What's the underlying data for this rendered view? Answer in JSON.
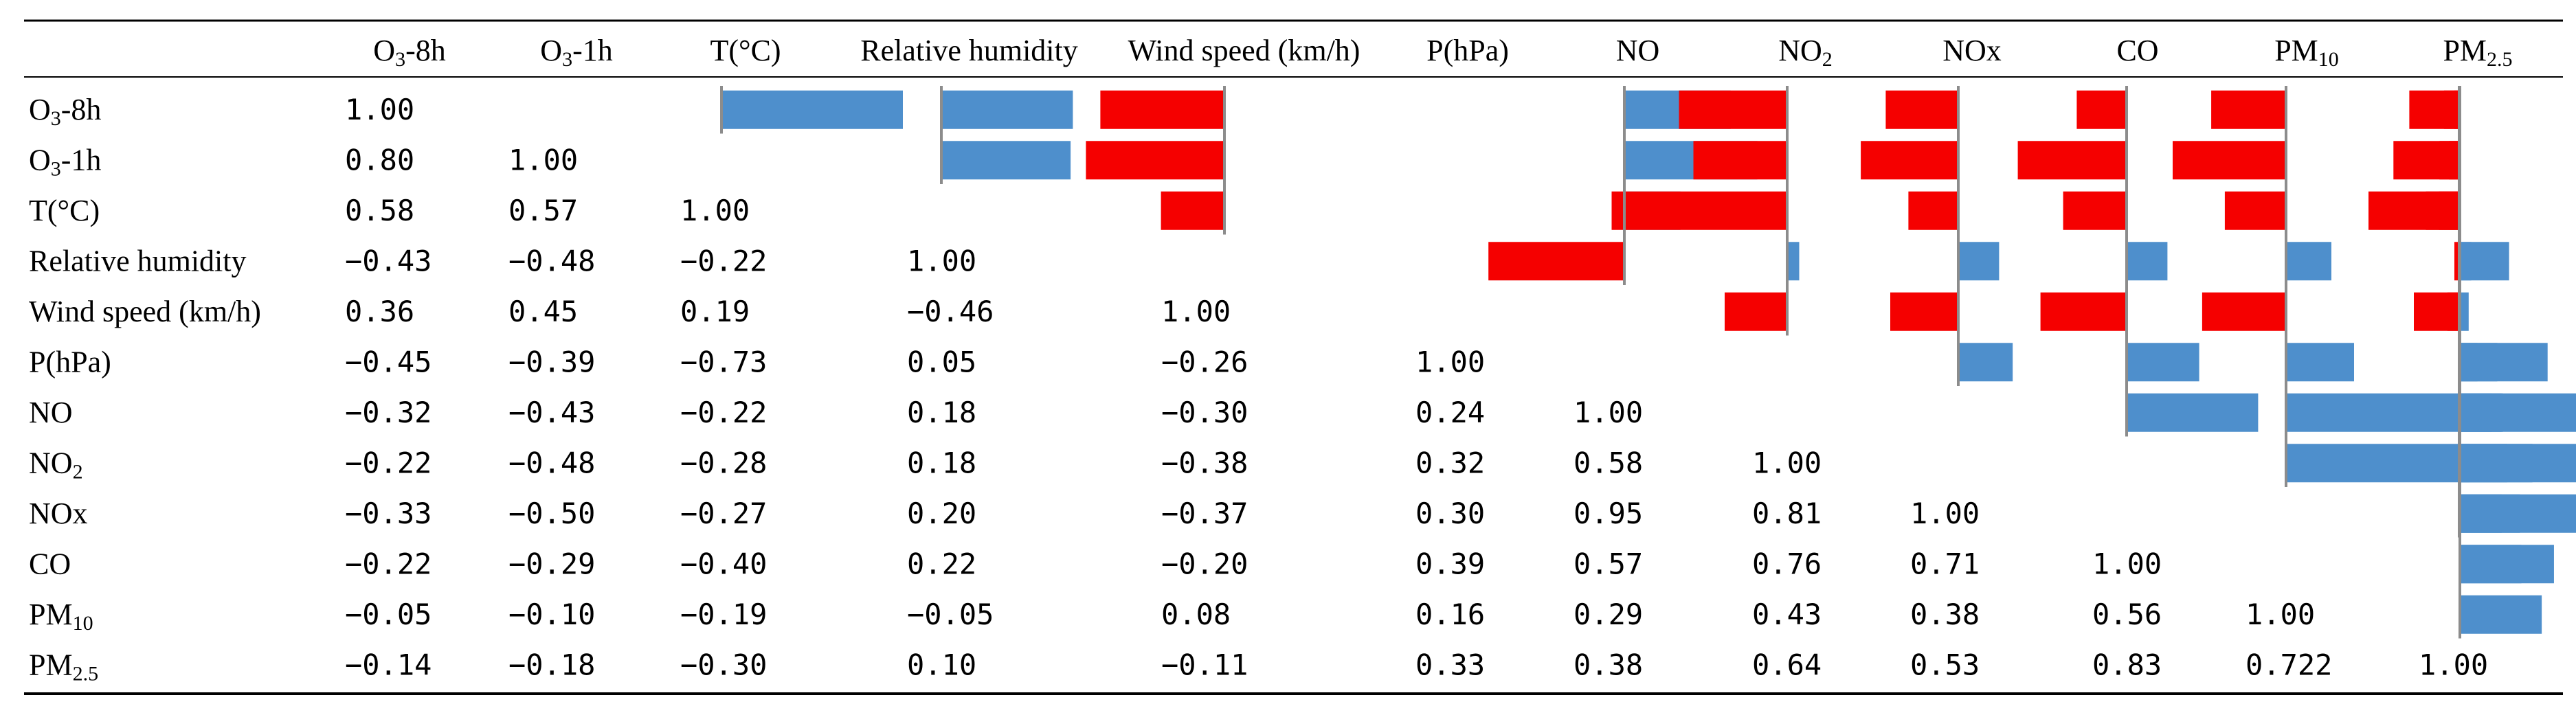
{
  "chart_data": {
    "type": "table",
    "title": "",
    "columns": [
      {
        "base": "O",
        "sub": "3",
        "post": "-8h"
      },
      {
        "base": "O",
        "sub": "3",
        "post": "-1h"
      },
      {
        "base": "T(°C)",
        "sub": "",
        "post": ""
      },
      {
        "base": "Relative humidity",
        "sub": "",
        "post": ""
      },
      {
        "base": "Wind speed (km/h)",
        "sub": "",
        "post": ""
      },
      {
        "base": "P(hPa)",
        "sub": "",
        "post": ""
      },
      {
        "base": "NO",
        "sub": "",
        "post": ""
      },
      {
        "base": "NO",
        "sub": "2",
        "post": ""
      },
      {
        "base": "NOx",
        "sub": "",
        "post": ""
      },
      {
        "base": "CO",
        "sub": "",
        "post": ""
      },
      {
        "base": "PM",
        "sub": "10",
        "post": ""
      },
      {
        "base": "PM",
        "sub": "2.5",
        "post": ""
      }
    ],
    "rows": [
      {
        "base": "O",
        "sub": "3",
        "post": "-8h"
      },
      {
        "base": "O",
        "sub": "3",
        "post": "-1h"
      },
      {
        "base": "T(°C)",
        "sub": "",
        "post": ""
      },
      {
        "base": "Relative humidity",
        "sub": "",
        "post": ""
      },
      {
        "base": "Wind speed (km/h)",
        "sub": "",
        "post": ""
      },
      {
        "base": "P(hPa)",
        "sub": "",
        "post": ""
      },
      {
        "base": "NO",
        "sub": "",
        "post": ""
      },
      {
        "base": "NO",
        "sub": "2",
        "post": ""
      },
      {
        "base": "NOx",
        "sub": "",
        "post": ""
      },
      {
        "base": "CO",
        "sub": "",
        "post": ""
      },
      {
        "base": "PM",
        "sub": "10",
        "post": ""
      },
      {
        "base": "PM",
        "sub": "2.5",
        "post": ""
      }
    ],
    "lower_triangle": [
      [
        "1.00"
      ],
      [
        "0.80",
        "1.00"
      ],
      [
        "0.58",
        "0.57",
        "1.00"
      ],
      [
        "−0.43",
        "−0.48",
        "−0.22",
        "1.00"
      ],
      [
        "0.36",
        "0.45",
        "0.19",
        "−0.46",
        "1.00"
      ],
      [
        "−0.45",
        "−0.39",
        "−0.73",
        "0.05",
        "−0.26",
        "1.00"
      ],
      [
        "−0.32",
        "−0.43",
        "−0.22",
        "0.18",
        "−0.30",
        "0.24",
        "1.00"
      ],
      [
        "−0.22",
        "−0.48",
        "−0.28",
        "0.18",
        "−0.38",
        "0.32",
        "0.58",
        "1.00"
      ],
      [
        "−0.33",
        "−0.50",
        "−0.27",
        "0.20",
        "−0.37",
        "0.30",
        "0.95",
        "0.81",
        "1.00"
      ],
      [
        "−0.22",
        "−0.29",
        "−0.40",
        "0.22",
        "−0.20",
        "0.39",
        "0.57",
        "0.76",
        "0.71",
        "1.00"
      ],
      [
        "−0.05",
        "−0.10",
        "−0.19",
        "−0.05",
        "0.08",
        "0.16",
        "0.29",
        "0.43",
        "0.38",
        "0.56",
        "1.00"
      ],
      [
        "−0.14",
        "−0.18",
        "−0.30",
        "0.10",
        "−0.11",
        "0.33",
        "0.38",
        "0.64",
        "0.53",
        "0.83",
        "0.722",
        "1.00"
      ]
    ],
    "bar_range": [
      -1,
      1
    ],
    "positive_color": "#4e8fcc",
    "negative_color": "#f50000",
    "axis_color": "#8c8c8c"
  }
}
